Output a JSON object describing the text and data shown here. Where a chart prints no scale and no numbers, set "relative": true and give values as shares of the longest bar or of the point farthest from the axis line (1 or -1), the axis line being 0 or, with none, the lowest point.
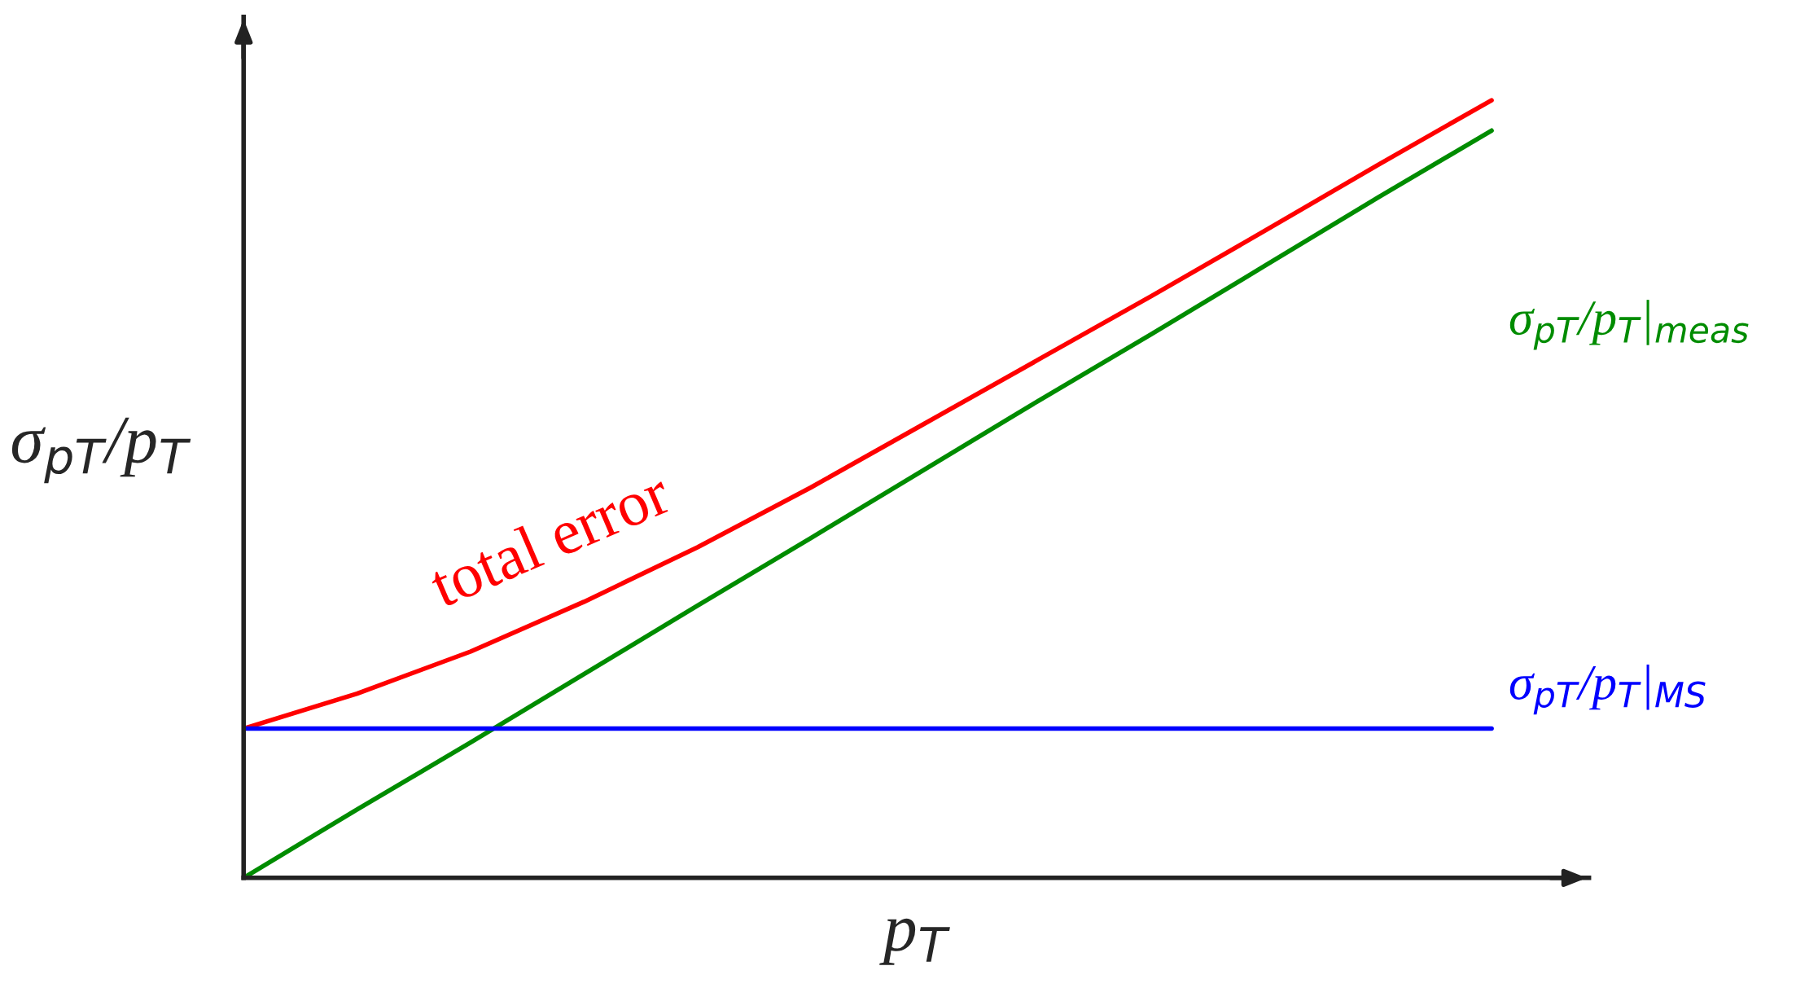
{
  "chart_data": {
    "type": "line",
    "relative": true,
    "xlabel": "p$_{T}$",
    "ylabel": "σ$_{pT}$/p$_{T}$",
    "legend": false,
    "grid": false,
    "marker": "none",
    "line_style": "solid",
    "categories": [
      null,
      null,
      null,
      null,
      null,
      null,
      null,
      null,
      null,
      null,
      null,
      null
    ],
    "series": [
      {
        "name": "total error",
        "color": "#ff0000",
        "values": [
          0.192,
          0.237,
          0.291,
          0.355,
          0.425,
          0.502,
          0.584,
          0.666,
          0.748,
          0.832,
          0.917,
          1.0
        ]
      },
      {
        "name": "σ$_{pT}$/p$_{T}$|$_{meas}$",
        "color": "#008c00",
        "values": [
          0,
          0.088,
          0.174,
          0.262,
          0.35,
          0.437,
          0.525,
          0.613,
          0.699,
          0.787,
          0.875,
          0.961
        ]
      },
      {
        "name": "σ$_{pT}$/p$_{T}$|$_{MS}$",
        "color": "#0000ff",
        "values": [
          0.192,
          0.192,
          0.192,
          0.192,
          0.192,
          0.192,
          0.192,
          0.192,
          0.192,
          0.192,
          0.192,
          0.192
        ]
      }
    ]
  }
}
